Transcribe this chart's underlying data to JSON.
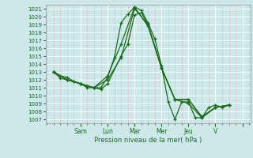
{
  "xlabel": "Pression niveau de la mer( hPa )",
  "bg_color": "#cce8e8",
  "grid_color": "#ffffff",
  "minor_grid_color": "#ddb8b8",
  "line_color": "#1a6b1a",
  "ylim": [
    1006.5,
    1021.5
  ],
  "xlim": [
    -0.3,
    7.3
  ],
  "yticks": [
    1007,
    1008,
    1009,
    1010,
    1011,
    1012,
    1013,
    1014,
    1015,
    1016,
    1017,
    1018,
    1019,
    1020,
    1021
  ],
  "xtick_major_pos": [
    1,
    2,
    3,
    4,
    5,
    6,
    7
  ],
  "xtick_major_labels": [
    "Sam",
    "Lun",
    "Mar",
    "Mer",
    "Jeu",
    "V",
    ""
  ],
  "lines": [
    {
      "x": [
        0.0,
        0.25,
        0.5,
        0.75,
        1.0,
        1.25,
        1.5,
        1.75,
        2.0,
        2.25,
        2.5,
        2.75,
        3.0,
        3.25,
        3.5,
        3.75,
        4.0,
        4.25,
        4.5,
        4.75,
        5.0,
        5.25,
        5.5,
        5.75,
        6.0,
        6.25,
        6.5
      ],
      "y": [
        1013.0,
        1012.5,
        1012.3,
        1011.8,
        1011.5,
        1011.2,
        1011.0,
        1011.0,
        1012.3,
        1014.8,
        1019.2,
        1020.3,
        1021.2,
        1020.8,
        1019.2,
        1017.2,
        1013.8,
        1009.2,
        1007.0,
        1009.2,
        1009.2,
        1007.2,
        1007.2,
        1008.5,
        1008.8,
        1008.5,
        1008.8
      ]
    },
    {
      "x": [
        0.0,
        0.25,
        0.5,
        0.75,
        1.0,
        1.25,
        1.5,
        1.75,
        2.0,
        2.5,
        2.75,
        3.0,
        3.25,
        3.5,
        4.0,
        4.5,
        5.0,
        5.5,
        6.0,
        6.5
      ],
      "y": [
        1013.0,
        1012.2,
        1012.0,
        1011.8,
        1011.5,
        1011.0,
        1011.0,
        1010.8,
        1011.5,
        1015.0,
        1016.5,
        1020.2,
        1020.5,
        1019.0,
        1013.5,
        1009.5,
        1009.5,
        1007.3,
        1008.5,
        1008.8
      ]
    },
    {
      "x": [
        0.0,
        0.5,
        1.0,
        1.5,
        2.0,
        2.5,
        3.0,
        3.5,
        4.0,
        4.5,
        5.0,
        5.5,
        6.0,
        6.5
      ],
      "y": [
        1013.0,
        1012.0,
        1011.5,
        1011.0,
        1012.0,
        1014.8,
        1021.0,
        1019.0,
        1013.5,
        1009.5,
        1009.5,
        1007.3,
        1008.5,
        1008.8
      ]
    },
    {
      "x": [
        0.0,
        0.5,
        1.0,
        1.5,
        2.0,
        2.5,
        3.0,
        3.5,
        4.0,
        4.5,
        5.0,
        5.5,
        6.0,
        6.5
      ],
      "y": [
        1013.0,
        1012.0,
        1011.5,
        1011.0,
        1012.5,
        1016.5,
        1021.2,
        1018.8,
        1013.5,
        1009.5,
        1009.0,
        1007.2,
        1008.5,
        1008.8
      ]
    }
  ]
}
